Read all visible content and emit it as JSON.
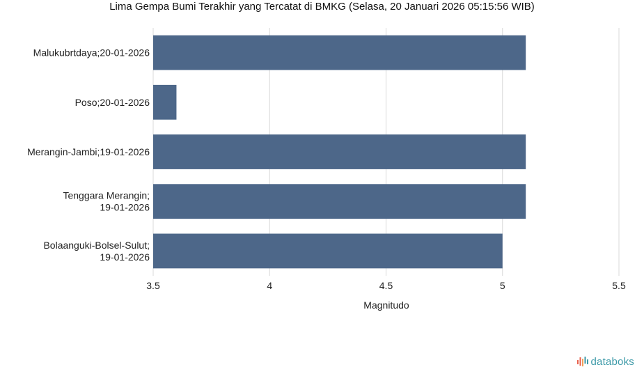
{
  "title": "Lima Gempa Bumi Terakhir yang Tercatat di BMKG (Selasa, 20 Januari 2026 05:15:56 WIB)",
  "brand": "databoks",
  "colors": {
    "bar": "#4d6789",
    "grid": "#d9d9d9",
    "brand": "#3d9aa8",
    "brand_accent": "#e8604c"
  },
  "chart_data": {
    "type": "bar",
    "orientation": "horizontal",
    "title": "Lima Gempa Bumi Terakhir yang Tercatat di BMKG (Selasa, 20 Januari 2026 05:15:56 WIB)",
    "xlabel": "Magnitudo",
    "ylabel": "",
    "xlim": [
      3.5,
      5.5
    ],
    "xticks": [
      "3.5",
      "4",
      "4.5",
      "5",
      "5.5"
    ],
    "grid": true,
    "categories": [
      [
        "Malukubrtdaya;20-01-2026"
      ],
      [
        "Poso;20-01-2026"
      ],
      [
        "Merangin-Jambi;19-01-2026"
      ],
      [
        "Tenggara Merangin;",
        "19-01-2026"
      ],
      [
        "Bolaanguki-Bolsel-Sulut;",
        "19-01-2026"
      ]
    ],
    "values": [
      5.1,
      3.6,
      5.1,
      5.1,
      5.0
    ]
  }
}
